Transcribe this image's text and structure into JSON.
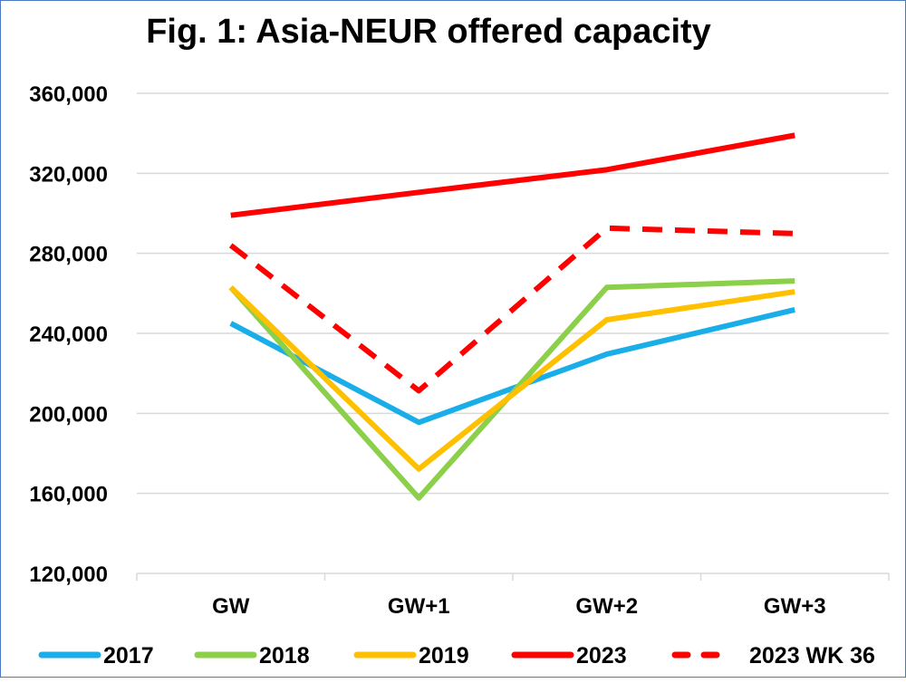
{
  "chart_data": {
    "type": "line",
    "title": "Fig. 1: Asia-NEUR offered capacity",
    "xlabel": "",
    "ylabel": "",
    "categories": [
      "GW",
      "GW+1",
      "GW+2",
      "GW+3"
    ],
    "ylim": [
      120000,
      360000
    ],
    "yticks": [
      120000,
      160000,
      200000,
      240000,
      280000,
      320000,
      360000
    ],
    "ytick_labels": [
      "120,000",
      "160,000",
      "200,000",
      "240,000",
      "280,000",
      "320,000",
      "360,000"
    ],
    "grid": true,
    "legend_position": "bottom",
    "series": [
      {
        "name": "2017",
        "color": "#1aaee8",
        "dashed": false,
        "values": [
          245000,
          195500,
          229600,
          251800
        ]
      },
      {
        "name": "2018",
        "color": "#8ccf4a",
        "dashed": false,
        "values": [
          263000,
          157700,
          263000,
          266200
        ]
      },
      {
        "name": "2019",
        "color": "#ffc000",
        "dashed": false,
        "values": [
          263000,
          172200,
          246800,
          260800
        ]
      },
      {
        "name": "2023",
        "color": "#ff0000",
        "dashed": false,
        "values": [
          299000,
          310500,
          321800,
          339000
        ]
      },
      {
        "name": "2023 WK 36",
        "color": "#ff0000",
        "dashed": true,
        "values": [
          284000,
          211300,
          292600,
          289900
        ]
      }
    ]
  }
}
